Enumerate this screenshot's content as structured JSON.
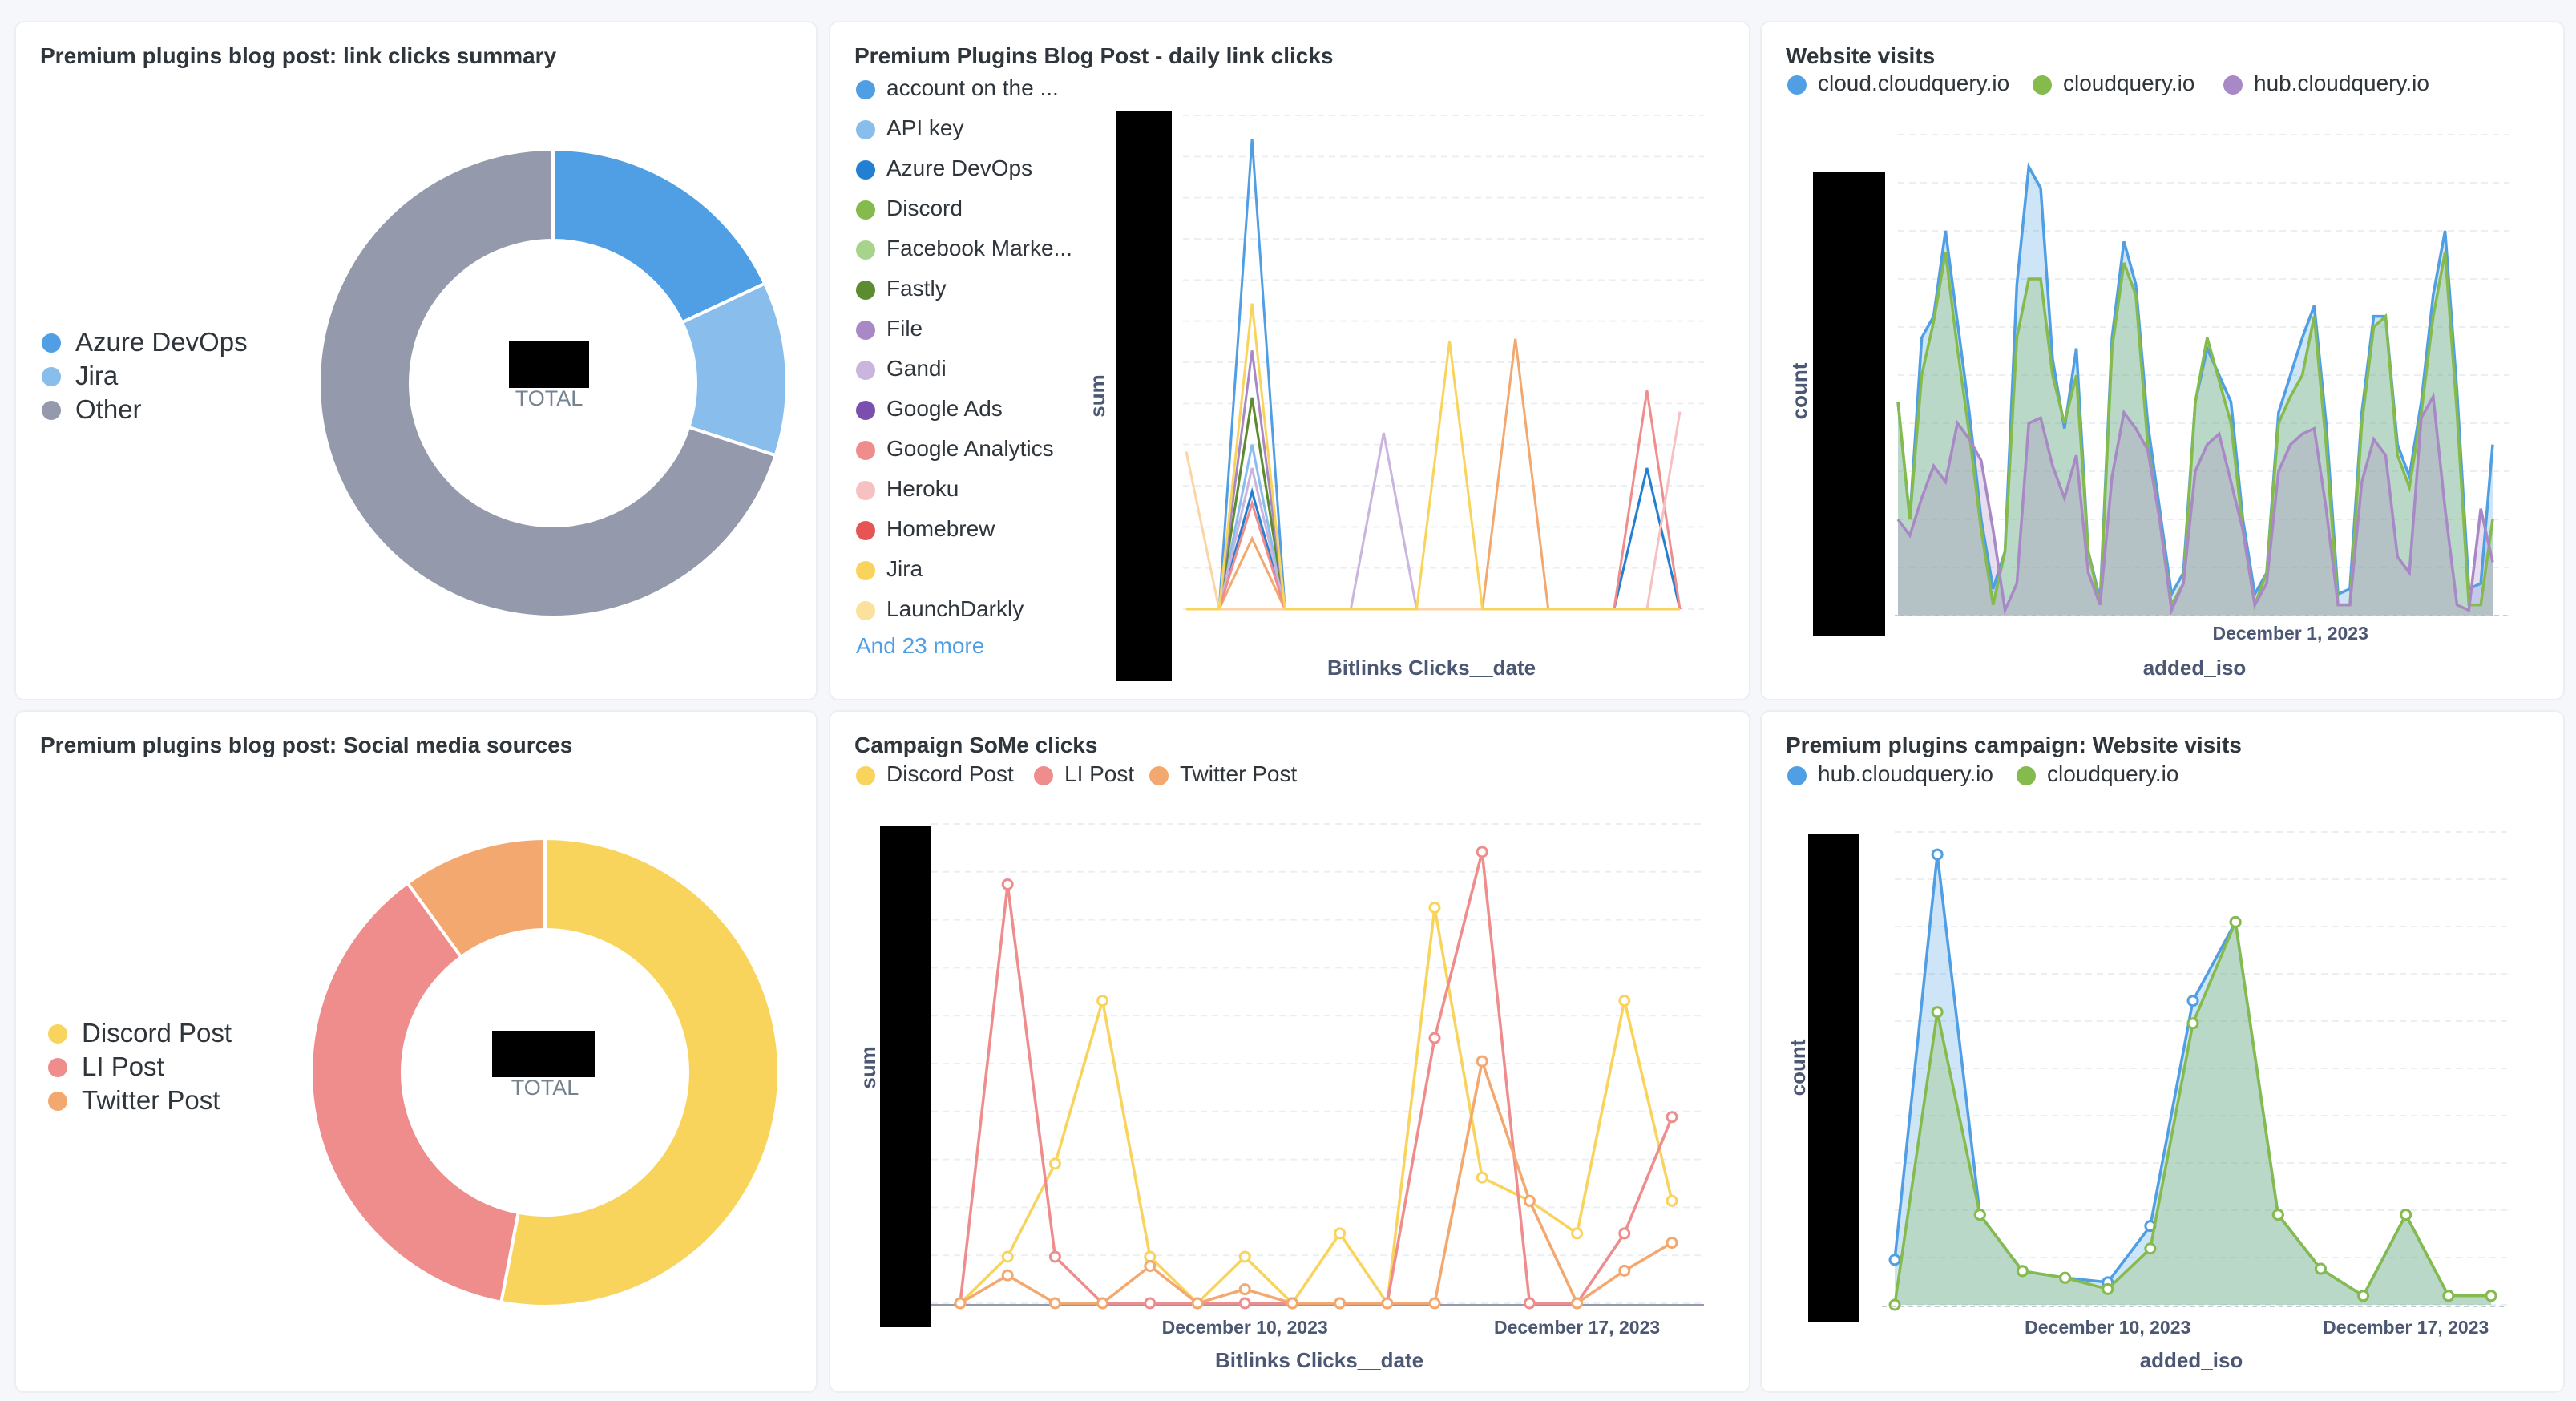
{
  "colors": {
    "blue": "#509ee3",
    "lightblue": "#88bdec",
    "grey": "#949aab",
    "yellow": "#f9d45c",
    "salmon": "#ef8c8c",
    "orange": "#f2a86f",
    "green": "#84bb4c",
    "purple": "#a989c5"
  },
  "cards": {
    "c1": {
      "title": "Premium plugins blog post: link clicks summary",
      "total_label": "TOTAL",
      "chart_data": {
        "type": "pie",
        "title": "Premium plugins blog post: link clicks summary",
        "labels": [
          "Azure DevOps",
          "Jira",
          "Other"
        ],
        "values": [
          18,
          12,
          70
        ],
        "colors": [
          "#509ee3",
          "#88bdec",
          "#949aab"
        ]
      }
    },
    "c2": {
      "title": "Premium Plugins Blog Post - daily link clicks",
      "more": "And 23 more",
      "chart_data": {
        "type": "line",
        "xlabel": "Bitlinks Clicks__date",
        "ylabel": "sum",
        "legend": [
          "account on the ...",
          "API key",
          "Azure DevOps",
          "Discord",
          "Facebook Marke...",
          "Fastly",
          "File",
          "Gandi",
          "Google Ads",
          "Google Analytics",
          "Heroku",
          "Homebrew",
          "Jira",
          "LaunchDarkly"
        ],
        "legend_colors": [
          "#509ee3",
          "#88bdec",
          "#227fd2",
          "#84bb4c",
          "#a6d48b",
          "#5c8b31",
          "#a989c5",
          "#c9b5dd",
          "#7b4fad",
          "#ef8c8c",
          "#f7c1c1",
          "#e65454",
          "#f9d45c",
          "#fbe19b"
        ],
        "x": [
          0,
          1,
          2,
          3,
          4,
          5,
          6,
          7,
          8,
          9,
          10,
          11,
          12,
          13,
          14,
          15
        ],
        "series": [
          {
            "color": "#509ee3",
            "values": [
              0,
              0,
              20,
              0,
              0,
              0,
              0,
              0,
              0,
              0,
              0,
              0,
              0,
              0,
              0,
              0
            ]
          },
          {
            "color": "#88bdec",
            "values": [
              0,
              0,
              7,
              0,
              0,
              0,
              0,
              0,
              0,
              0,
              0,
              0,
              0,
              0,
              0,
              0
            ]
          },
          {
            "color": "#227fd2",
            "values": [
              0,
              0,
              5,
              0,
              0,
              0,
              0,
              0,
              0,
              0,
              0,
              0,
              0,
              0,
              6,
              0
            ]
          },
          {
            "color": "#84bb4c",
            "values": [
              0,
              0,
              9,
              0,
              0,
              0,
              0,
              0,
              0,
              0,
              0,
              0,
              0,
              0,
              0,
              0
            ]
          },
          {
            "color": "#5c8b31",
            "values": [
              0,
              0,
              9,
              0,
              0,
              0,
              0,
              0,
              0,
              0,
              0,
              0,
              0,
              0,
              0,
              0
            ]
          },
          {
            "color": "#a989c5",
            "values": [
              0,
              0,
              11,
              0,
              0,
              0,
              0,
              0,
              0,
              0,
              0,
              0,
              0,
              0,
              0,
              0
            ]
          },
          {
            "color": "#c9b5dd",
            "values": [
              0,
              0,
              6,
              0,
              0,
              0,
              7.5,
              0,
              0,
              0,
              0,
              0,
              0,
              0,
              0,
              0
            ]
          },
          {
            "color": "#f2a86f",
            "values": [
              0,
              0,
              3,
              0,
              0,
              0,
              0,
              0,
              0,
              0,
              11.5,
              0,
              0,
              0,
              0,
              0
            ]
          },
          {
            "color": "#ef8c8c",
            "values": [
              0,
              0,
              4.5,
              0,
              0,
              0,
              0,
              0,
              0,
              0,
              0,
              0,
              0,
              0,
              9.3,
              0
            ]
          },
          {
            "color": "#f7c1c1",
            "values": [
              0,
              0,
              0,
              0,
              0,
              0,
              0,
              0,
              0,
              0,
              0,
              0,
              0,
              0,
              0,
              8.4
            ]
          },
          {
            "color": "#fbd4a8",
            "values": [
              6.7,
              0,
              0,
              0,
              0,
              0,
              0,
              0,
              0,
              0,
              0,
              0,
              0,
              0,
              0,
              0
            ]
          },
          {
            "color": "#f9d45c",
            "values": [
              0,
              0,
              13,
              0,
              0,
              0,
              0,
              0,
              11.4,
              0,
              0,
              0,
              0,
              0,
              0,
              0
            ]
          }
        ]
      }
    },
    "c3": {
      "title": "Website visits",
      "legend": [
        "cloud.cloudquery.io",
        "cloudquery.io",
        "hub.cloudquery.io"
      ],
      "chart_data": {
        "type": "area",
        "xlabel": "added_iso",
        "ylabel": "count",
        "x_tick": "December 1, 2023",
        "x_tick_index": 33,
        "series": [
          {
            "name": "hub.cloudquery.io",
            "color": "#a989c5",
            "values": [
              18,
              15,
              22,
              28,
              25,
              36,
              33,
              29,
              16,
              1,
              6,
              36,
              37,
              28,
              22,
              30,
              8,
              2,
              26,
              38,
              35,
              31,
              18,
              1,
              6,
              27,
              32,
              34,
              25,
              16,
              2,
              6,
              27,
              32,
              34,
              35,
              20,
              2,
              2,
              25,
              33,
              30,
              11,
              8,
              37,
              41,
              20,
              2,
              1,
              20,
              10
            ]
          },
          {
            "name": "cloudquery.io",
            "color": "#84bb4c",
            "values": [
              40,
              18,
              45,
              55,
              68,
              50,
              34,
              16,
              2,
              12,
              52,
              63,
              63,
              45,
              36,
              45,
              12,
              2,
              50,
              66,
              60,
              32,
              18,
              2,
              6,
              40,
              52,
              44,
              36,
              16,
              2,
              8,
              36,
              41,
              45,
              56,
              32,
              2,
              2,
              36,
              54,
              56,
              30,
              24,
              38,
              56,
              68,
              38,
              2,
              2,
              18
            ]
          },
          {
            "name": "cloud.cloudquery.io",
            "color": "#509ee3",
            "values": [
              40,
              18,
              52,
              56,
              72,
              55,
              38,
              18,
              5,
              12,
              62,
              84,
              80,
              48,
              35,
              50,
              12,
              3,
              52,
              70,
              62,
              36,
              20,
              4,
              8,
              40,
              50,
              45,
              40,
              18,
              4,
              8,
              38,
              45,
              52,
              58,
              36,
              4,
              5,
              38,
              56,
              56,
              32,
              26,
              40,
              60,
              72,
              42,
              5,
              6,
              32
            ]
          }
        ]
      }
    },
    "c4": {
      "title": "Premium plugins blog post: Social media sources",
      "total_label": "TOTAL",
      "chart_data": {
        "type": "pie",
        "title": "Premium plugins blog post: Social media sources",
        "labels": [
          "Discord Post",
          "LI Post",
          "Twitter Post"
        ],
        "values": [
          53,
          37,
          10
        ],
        "colors": [
          "#f9d45c",
          "#ef8c8c",
          "#f2a86f"
        ]
      }
    },
    "c5": {
      "title": "Campaign SoMe clicks",
      "legend": [
        "Discord Post",
        "LI Post",
        "Twitter Post"
      ],
      "chart_data": {
        "type": "line",
        "xlabel": "Bitlinks Clicks__date",
        "ylabel": "sum",
        "x_ticks": [
          "December 10, 2023",
          "December 17, 2023"
        ],
        "x_tick_index": [
          6,
          13
        ],
        "x": [
          0,
          1,
          2,
          3,
          4,
          5,
          6,
          7,
          8,
          9,
          10,
          11,
          12,
          13,
          14,
          15
        ],
        "series": [
          {
            "name": "Discord Post",
            "color": "#f9d45c",
            "values": [
              0,
              1,
              3,
              6.5,
              1,
              0,
              1,
              0,
              1.5,
              0,
              8.5,
              2.7,
              2.2,
              1.5,
              6.5,
              2.2
            ]
          },
          {
            "name": "LI Post",
            "color": "#ef8c8c",
            "values": [
              0,
              9,
              1,
              0,
              0,
              0,
              0,
              0,
              0,
              0,
              5.7,
              9.7,
              0,
              0,
              1.5,
              4
            ]
          },
          {
            "name": "Twitter Post",
            "color": "#f2a86f",
            "values": [
              0,
              0.6,
              0,
              0,
              0.8,
              0,
              0.3,
              0,
              0,
              0,
              0,
              5.2,
              2.2,
              0,
              0.7,
              1.3
            ]
          }
        ]
      }
    },
    "c6": {
      "title": "Premium plugins campaign: Website visits",
      "legend": [
        "hub.cloudquery.io",
        "cloudquery.io"
      ],
      "chart_data": {
        "type": "area",
        "xlabel": "added_iso",
        "ylabel": "count",
        "x_ticks": [
          "December 10, 2023",
          "December 17, 2023"
        ],
        "x_tick_index": [
          5,
          12
        ],
        "x": [
          0,
          1,
          2,
          3,
          4,
          5,
          6,
          7,
          8,
          9,
          10,
          11,
          12,
          13,
          14
        ],
        "series": [
          {
            "name": "hub.cloudquery.io",
            "color": "#509ee3",
            "values": [
              2,
              20,
              4,
              1.5,
              1.2,
              1,
              3.5,
              13.5,
              17,
              4,
              1.6,
              0.4,
              4,
              0.4,
              0.4
            ]
          },
          {
            "name": "cloudquery.io",
            "color": "#84bb4c",
            "values": [
              0,
              13,
              4,
              1.5,
              1.2,
              0.7,
              2.5,
              12.5,
              17,
              4,
              1.6,
              0.4,
              4,
              0.4,
              0.4
            ]
          }
        ]
      }
    }
  }
}
